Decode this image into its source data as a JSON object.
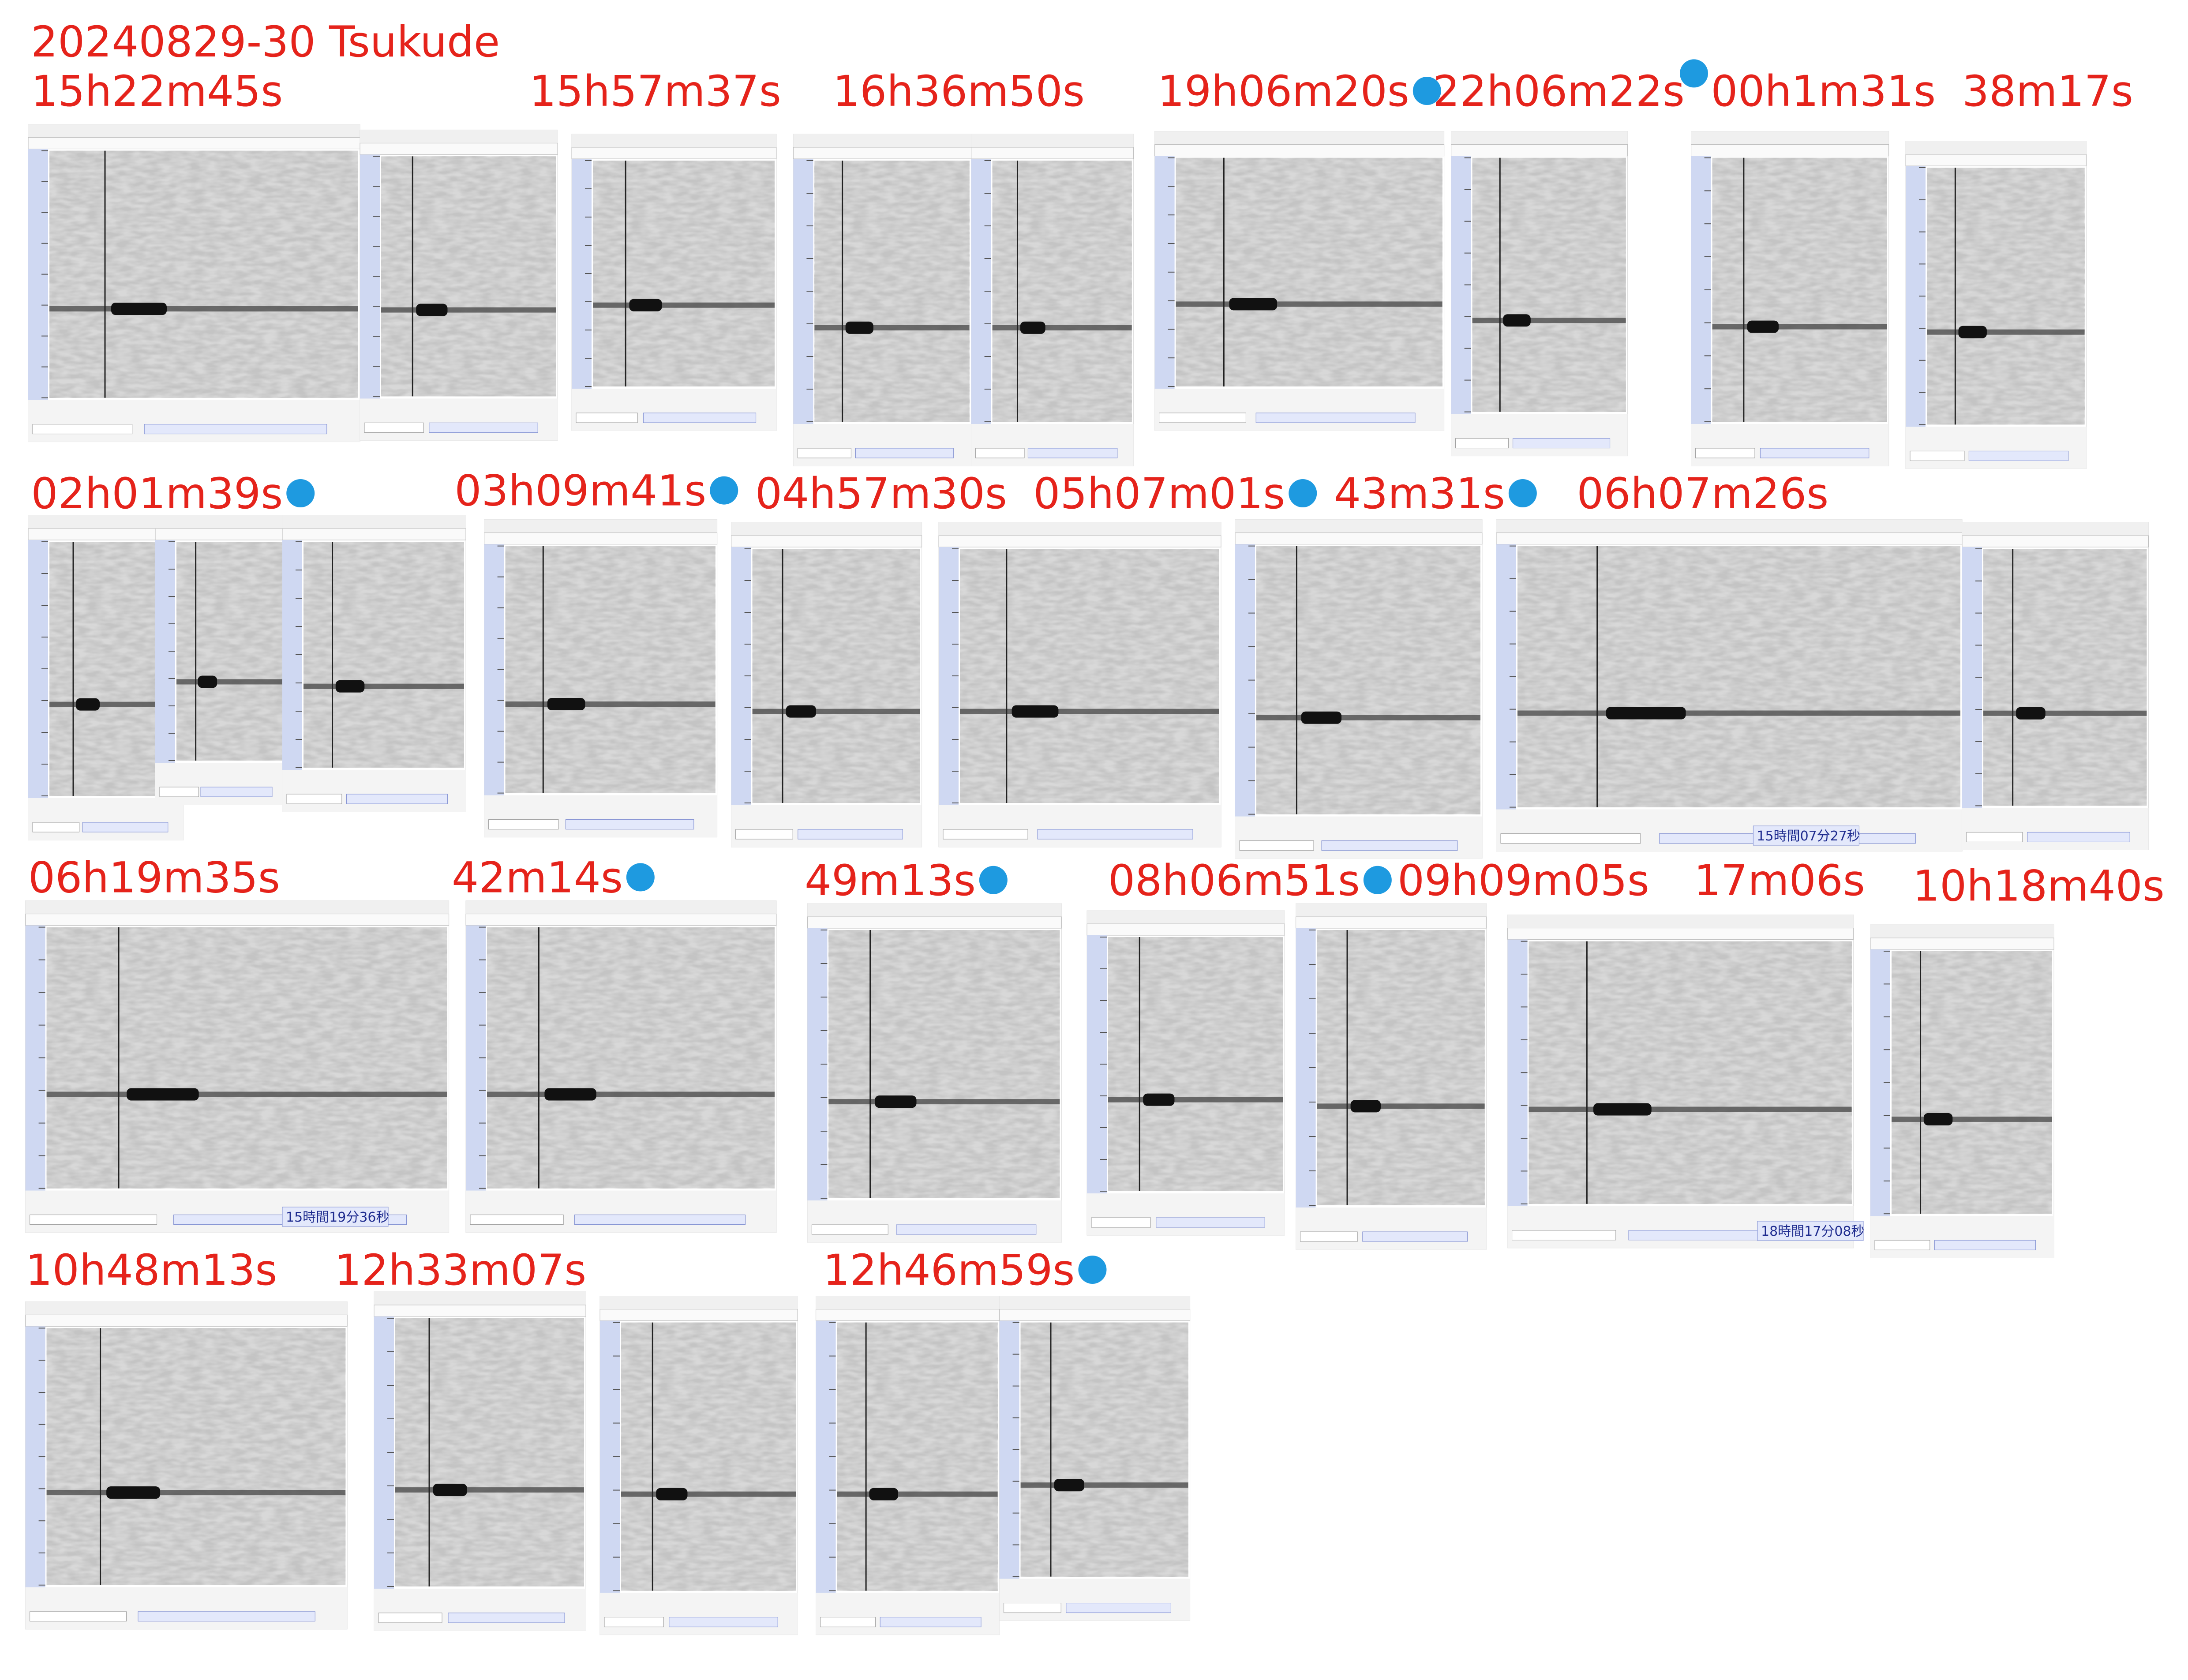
{
  "title": "20240829-30  Tsukude",
  "captions": [
    "15h22m45s",
    "15h57m37s",
    "16h36m50s",
    "19h06m20s",
    "22h06m22s",
    "00h1m31s",
    "38m17s",
    "02h01m39s",
    "03h09m41s",
    "04h57m30s",
    "05h07m01s",
    "43m31s",
    "06h07m26s",
    "06h19m35s",
    "42m14s",
    "49m13s",
    "08h06m51s",
    "09h09m05s",
    "17m06s",
    "10h18m40s",
    "10h48m13s",
    "12h33m07s",
    "12h46m59s"
  ],
  "time_boxes": [
    "15時間07分27秒",
    "15時間19分36秒",
    "18時間17分08秒"
  ]
}
